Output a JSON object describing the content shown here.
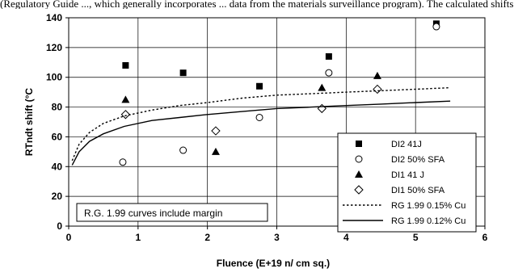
{
  "page": {
    "top_fragment": "(Regulatory Guide ..., which generally incorporates ... data from the materials surveillance program). The calculated shifts"
  },
  "chart_data": {
    "type": "scatter",
    "xlabel": "Fluence (E+19 n/ cm sq.)",
    "ylabel": "RTndt shift (°C",
    "xlim": [
      0,
      6
    ],
    "ylim": [
      0,
      140
    ],
    "x_ticks": [
      "0",
      "1",
      "2",
      "3",
      "4",
      "5",
      "6"
    ],
    "y_ticks": [
      "0",
      "20",
      "40",
      "60",
      "80",
      "100",
      "120",
      "140"
    ],
    "grid": true,
    "legend_position": "bottom-right",
    "annotation": "R.G. 1.99  curves include margin",
    "series": [
      {
        "name": "DI2 41J",
        "marker": "square-filled",
        "points": [
          [
            0.82,
            108
          ],
          [
            1.65,
            103
          ],
          [
            2.75,
            94
          ],
          [
            3.75,
            114
          ],
          [
            5.3,
            136
          ]
        ]
      },
      {
        "name": "DI2 50% SFA",
        "marker": "circle-open",
        "points": [
          [
            0.78,
            43
          ],
          [
            1.65,
            51
          ],
          [
            2.75,
            73
          ],
          [
            3.75,
            103
          ],
          [
            5.3,
            134
          ]
        ]
      },
      {
        "name": "DI1 41 J",
        "marker": "triangle-filled",
        "points": [
          [
            0.82,
            85
          ],
          [
            2.12,
            50
          ],
          [
            3.65,
            93
          ],
          [
            4.45,
            101
          ]
        ]
      },
      {
        "name": "DI1 50% SFA",
        "marker": "diamond-open",
        "points": [
          [
            0.82,
            75
          ],
          [
            2.12,
            64
          ],
          [
            3.65,
            79
          ],
          [
            4.45,
            92
          ]
        ]
      },
      {
        "name": "RG 1.99 0.15% Cu",
        "line": "dotted",
        "points": [
          [
            0.05,
            44
          ],
          [
            0.15,
            55
          ],
          [
            0.3,
            63
          ],
          [
            0.5,
            69
          ],
          [
            0.8,
            74
          ],
          [
            1.2,
            78
          ],
          [
            1.6,
            81
          ],
          [
            2.0,
            83
          ],
          [
            2.5,
            86
          ],
          [
            3.0,
            88
          ],
          [
            3.5,
            89
          ],
          [
            4.0,
            90
          ],
          [
            4.5,
            91
          ],
          [
            5.0,
            92
          ],
          [
            5.5,
            93
          ]
        ]
      },
      {
        "name": "RG 1.99 0.12% Cu",
        "line": "solid",
        "points": [
          [
            0.05,
            41
          ],
          [
            0.15,
            50
          ],
          [
            0.3,
            57
          ],
          [
            0.5,
            62
          ],
          [
            0.8,
            67
          ],
          [
            1.2,
            71
          ],
          [
            1.6,
            73
          ],
          [
            2.0,
            75
          ],
          [
            2.5,
            77
          ],
          [
            3.0,
            79
          ],
          [
            3.5,
            80
          ],
          [
            4.0,
            81
          ],
          [
            4.5,
            82
          ],
          [
            5.0,
            83
          ],
          [
            5.5,
            84
          ]
        ]
      }
    ]
  }
}
